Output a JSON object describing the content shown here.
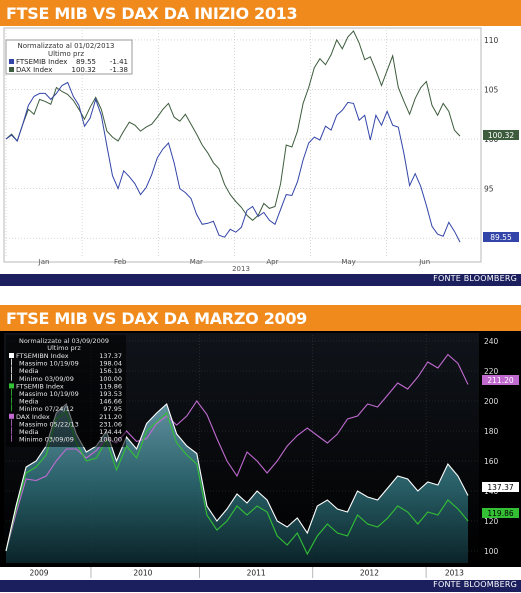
{
  "colors": {
    "banner": "#f08a1c",
    "footer": "#1b1f5e",
    "dax_top": "#3d5c3d",
    "ftse_top": "#3345a8",
    "dax_bottom": "#c06ad0",
    "ftse_bottom": "#34c034",
    "ftsebanks_bottom": "#ffffff",
    "dark_bg": "#000000"
  },
  "source_label": "FONTE BLOOMBERG",
  "chart_data": [
    {
      "type": "line",
      "title": "FTSE MIB VS DAX DA INIZIO 2013",
      "legend": {
        "header_line1": "Normalizzato al 01/02/2013",
        "header_line2": "Ultimo prz",
        "entries": [
          {
            "name": "FTSEMIB Index",
            "value": "89.55",
            "change": "-1.41"
          },
          {
            "name": "DAX Index",
            "value": "100.32",
            "change": "-1.38"
          }
        ],
        "placement": "top-left"
      },
      "x_tick_labels": [
        "Jan",
        "Feb",
        "Mar",
        "Apr",
        "May",
        "Jun"
      ],
      "x_year_label": "2013",
      "y_ticks": [
        90,
        95,
        100,
        105,
        110
      ],
      "ylim": [
        88,
        111
      ],
      "y_axis_side": "right",
      "last_value_tags": [
        "100.32",
        "89.55"
      ],
      "grid": true,
      "series": [
        {
          "name": "DAX Index",
          "values": [
            100,
            100.5,
            99.8,
            101.5,
            103,
            102.5,
            104,
            103.8,
            103.5,
            105.2,
            104.8,
            104.5,
            103.9,
            103,
            102,
            103.2,
            104.2,
            103,
            100.8,
            100.2,
            99.8,
            100.8,
            101.7,
            101.4,
            100.8,
            101.2,
            101.5,
            102.2,
            103,
            103.6,
            102.2,
            101.8,
            102.5,
            101.5,
            100.5,
            99.4,
            98.6,
            97.6,
            97,
            95.4,
            94.4,
            93.7,
            93.1,
            92.3,
            91.8,
            92.3,
            93.5,
            93,
            93.2,
            95.5,
            99.4,
            99.2,
            100.8,
            103.6,
            105.2,
            107.2,
            108.1,
            107.5,
            108.5,
            110,
            109.1,
            110.3,
            110.9,
            109.7,
            108,
            108.3,
            106.9,
            105.4,
            106.9,
            108.4,
            105.2,
            103.8,
            102.5,
            104.1,
            105.2,
            105.8,
            103.4,
            102.4,
            103.6,
            102.8,
            100.9,
            100.3
          ]
        },
        {
          "name": "FTSEMIB Index",
          "values": [
            100,
            100.4,
            99.8,
            101.5,
            103.4,
            104.3,
            104.6,
            104.6,
            104,
            104.6,
            105.4,
            105.7,
            104.3,
            103.4,
            101.3,
            102.1,
            104,
            102.4,
            99.3,
            96.3,
            95,
            96.8,
            96.2,
            95.5,
            94.4,
            95.1,
            96.4,
            98.1,
            99,
            99.6,
            97.6,
            95,
            94.6,
            94,
            92.4,
            91.4,
            91.5,
            91.7,
            90.3,
            90.1,
            90.9,
            90.6,
            91.1,
            92.8,
            93.2,
            92.2,
            92.6,
            91.8,
            91.4,
            92.9,
            94.4,
            94.3,
            95.7,
            97.9,
            99.6,
            100.2,
            99.9,
            101.3,
            100.9,
            102.4,
            102.9,
            103.7,
            103.6,
            101.9,
            102.4,
            99.9,
            102.4,
            101.4,
            102.8,
            101.4,
            101.2,
            98.5,
            95.3,
            96.5,
            95.2,
            93.3,
            91.2,
            90.4,
            90.2,
            91.6,
            90.7,
            89.6
          ]
        }
      ]
    },
    {
      "type": "area",
      "title": "FTSE MIB VS DAX DA MARZO 2009",
      "legend": {
        "header_line1": "Normalizzato al 03/09/2009",
        "header_line2": "Ultimo prz",
        "entries": [
          {
            "name": "FTSEMIBN Index",
            "value": "137.37"
          },
          {
            "name": "Massimo 10/19/09",
            "value": "198.04"
          },
          {
            "name": "Media",
            "value": "156.19"
          },
          {
            "name": "Minimo 03/09/09",
            "value": "100.00"
          },
          {
            "name": "FTSEMIB Index",
            "value": "119.86"
          },
          {
            "name": "Massimo 10/19/09",
            "value": "193.53"
          },
          {
            "name": "Media",
            "value": "146.66"
          },
          {
            "name": "Minimo 07/24/12",
            "value": "97.95"
          },
          {
            "name": "DAX Index",
            "value": "211.20"
          },
          {
            "name": "Massimo 05/22/13",
            "value": "231.06"
          },
          {
            "name": "Media",
            "value": "174.44"
          },
          {
            "name": "Minimo 03/09/09",
            "value": "100.00"
          }
        ],
        "placement": "top-left"
      },
      "x_tick_labels": [
        "2009",
        "2010",
        "2011",
        "2012",
        "2013"
      ],
      "y_ticks": [
        100,
        120,
        140,
        160,
        180,
        200,
        220,
        240
      ],
      "ylim": [
        92,
        244
      ],
      "y_axis_side": "right",
      "last_value_tags": [
        "211.20",
        "137.37",
        "119.86"
      ],
      "grid": true,
      "series": [
        {
          "name": "DAX Index",
          "values": [
            100,
            125,
            148,
            147,
            150,
            160,
            168,
            168,
            162,
            167,
            175,
            172,
            180,
            173,
            175,
            185,
            190,
            184,
            190,
            200,
            191,
            175,
            160,
            150,
            166,
            160,
            152,
            160,
            170,
            177,
            182,
            177,
            172,
            178,
            188,
            190,
            198,
            196,
            204,
            212,
            208,
            216,
            226,
            222,
            231,
            225,
            211
          ]
        },
        {
          "name": "FTSEMIBN Index",
          "values": [
            100,
            130,
            156,
            160,
            170,
            192,
            198,
            178,
            166,
            170,
            180,
            160,
            176,
            168,
            185,
            192,
            198,
            178,
            170,
            165,
            130,
            120,
            128,
            138,
            132,
            140,
            134,
            120,
            116,
            122,
            112,
            130,
            134,
            128,
            126,
            140,
            136,
            134,
            142,
            150,
            148,
            140,
            146,
            144,
            158,
            150,
            137
          ]
        },
        {
          "name": "FTSEMIB Index",
          "values": [
            100,
            128,
            152,
            156,
            164,
            188,
            193,
            172,
            160,
            162,
            174,
            154,
            170,
            162,
            180,
            186,
            192,
            172,
            164,
            158,
            124,
            114,
            120,
            130,
            124,
            130,
            126,
            110,
            104,
            112,
            98,
            110,
            118,
            112,
            110,
            124,
            118,
            116,
            122,
            130,
            126,
            118,
            126,
            124,
            134,
            128,
            120
          ]
        }
      ]
    }
  ]
}
